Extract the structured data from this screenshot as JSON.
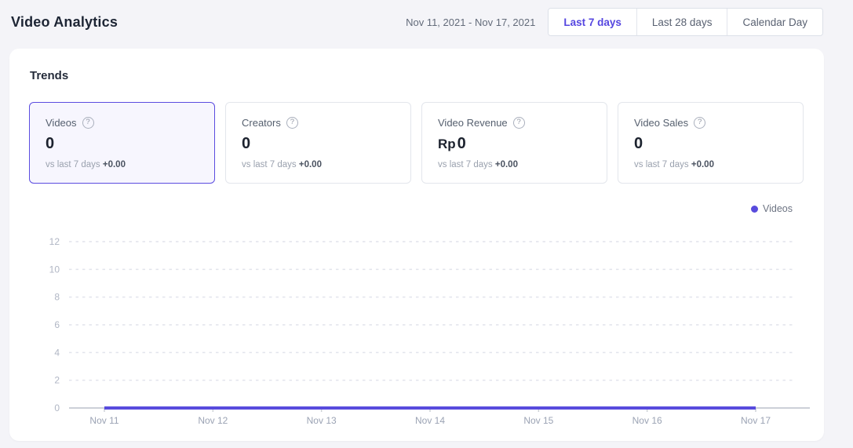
{
  "header": {
    "title": "Video Analytics",
    "date_range": "Nov 11, 2021 - Nov 17, 2021",
    "range_buttons": [
      {
        "label": "Last 7 days",
        "active": true
      },
      {
        "label": "Last 28 days",
        "active": false
      },
      {
        "label": "Calendar Day",
        "active": false
      }
    ]
  },
  "trends": {
    "heading": "Trends",
    "stat_cards": [
      {
        "label": "Videos",
        "prefix": "",
        "value": "0",
        "compare_label": "vs last 7 days",
        "delta": "+0.00",
        "selected": true
      },
      {
        "label": "Creators",
        "prefix": "",
        "value": "0",
        "compare_label": "vs last 7 days",
        "delta": "+0.00",
        "selected": false
      },
      {
        "label": "Video Revenue",
        "prefix": "Rp",
        "value": "0",
        "compare_label": "vs last 7 days",
        "delta": "+0.00",
        "selected": false
      },
      {
        "label": "Video Sales",
        "prefix": "",
        "value": "0",
        "compare_label": "vs last 7 days",
        "delta": "+0.00",
        "selected": false
      }
    ]
  },
  "icons": {
    "help": "?"
  },
  "chart_data": {
    "type": "line",
    "x": [
      "Nov 11",
      "Nov 12",
      "Nov 13",
      "Nov 14",
      "Nov 15",
      "Nov 16",
      "Nov 17"
    ],
    "series": [
      {
        "name": "Videos",
        "values": [
          0,
          0,
          0,
          0,
          0,
          0,
          0
        ],
        "color": "#584bdd"
      }
    ],
    "title": "",
    "xlabel": "",
    "ylabel": "",
    "ylim": [
      0,
      12
    ],
    "yticks": [
      0,
      2,
      4,
      6,
      8,
      10,
      12
    ],
    "grid": "horizontal-dashed",
    "legend_position": "top-right"
  },
  "colors": {
    "accent": "#5546e0",
    "line": "#584bdd",
    "selected_card_border": "#5b4ce0",
    "selected_card_bg": "#f7f6fe",
    "page_bg": "#f4f4f8",
    "gridline": "#e2e4ec",
    "baseline": "#ccd0d8"
  }
}
